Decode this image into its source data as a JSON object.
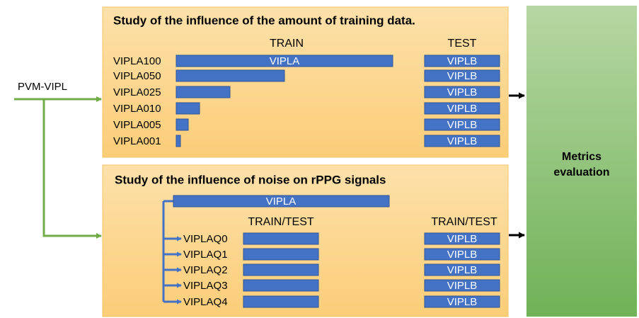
{
  "source": "PVM-VIPL",
  "panel1": {
    "title": "Study of the influence of the amount of training data.",
    "train_header": "TRAIN",
    "test_header": "TEST",
    "rows": [
      "VIPLA100",
      "VIPLA050",
      "VIPLA025",
      "VIPLA010",
      "VIPLA005",
      "VIPLA001"
    ],
    "train_bar_label": "VIPLA",
    "tests": [
      "VIPLB",
      "VIPLB",
      "VIPLB",
      "VIPLB",
      "VIPLB",
      "VIPLB"
    ]
  },
  "panel2": {
    "title": "Study of the influence of noise on rPPG signals",
    "top_bar": "VIPLA",
    "left_header": "TRAIN/TEST",
    "right_header": "TRAIN/TEST",
    "rows": [
      "VIPLAQ0",
      "VIPLAQ1",
      "VIPLAQ2",
      "VIPLAQ3",
      "VIPLAQ4"
    ],
    "tests": [
      "VIPLB",
      "VIPLB",
      "VIPLB",
      "VIPLB",
      "VIPLB"
    ]
  },
  "metrics": [
    "Metrics",
    "evaluation"
  ]
}
